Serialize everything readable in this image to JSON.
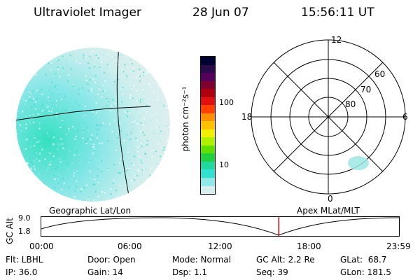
{
  "header": {
    "instrument": "Ultraviolet Imager",
    "date": "28 Jun 07",
    "time": "15:56:11 UT"
  },
  "colorbar": {
    "unit_label": "photon cm⁻²s⁻¹",
    "ticks": [
      "100",
      "10"
    ],
    "colors": [
      "#000033",
      "#2a0a4a",
      "#55005a",
      "#800030",
      "#b00010",
      "#e01010",
      "#ff4000",
      "#ff9000",
      "#ffc000",
      "#f0f000",
      "#b0f000",
      "#60e000",
      "#20d040",
      "#20d8a0",
      "#30e0d0",
      "#90e8e8",
      "#d8eeee"
    ]
  },
  "polar": {
    "hour_labels": [
      "12",
      "18",
      "6",
      "0"
    ],
    "lat_labels": [
      "60",
      "70",
      "80"
    ]
  },
  "timeline": {
    "left_title": "Geographic Lat/Lon",
    "right_title": "Apex MLat/MLT",
    "axis_label": "GC Alt",
    "y_ticks": [
      "9.0",
      "1.8"
    ],
    "x_ticks": [
      "00:00",
      "06:00",
      "12:00",
      "18:00",
      "23:59"
    ],
    "current_time_fraction": 0.664
  },
  "info": {
    "flt": "Flt: LBHL",
    "ip": "IP: 36.0",
    "door": "Door: Open",
    "gain": "Gain: 14",
    "mode": "Mode: Normal",
    "dsp": "Dsp:    1.1",
    "gcalt": "GC Alt: 2.2 Re",
    "seq": "Seq: 39",
    "glat": "GLat:  68.7",
    "glon": "GLon: 181.5"
  }
}
